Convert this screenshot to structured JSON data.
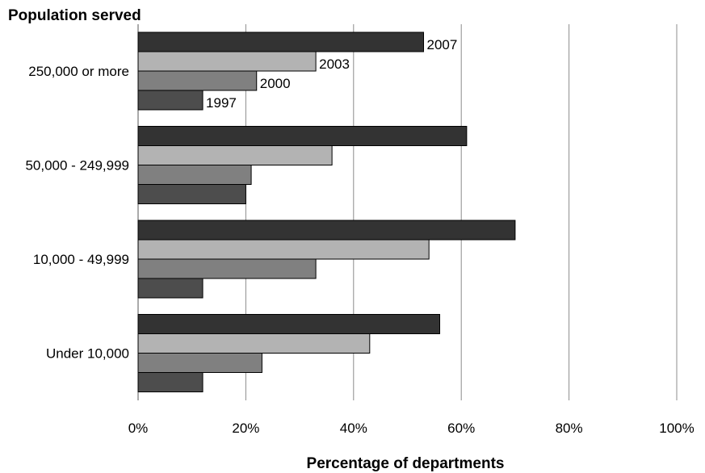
{
  "chart_data": {
    "type": "bar",
    "orientation": "horizontal",
    "title": "Population served",
    "xlabel": "Percentage of departments",
    "ylabel": "",
    "xlim": [
      0,
      100
    ],
    "x_ticks": [
      "0%",
      "20%",
      "40%",
      "60%",
      "80%",
      "100%"
    ],
    "x_tick_values": [
      0,
      20,
      40,
      60,
      80,
      100
    ],
    "grid": "vertical",
    "legend": "series labels on first category",
    "categories": [
      "250,000 or more",
      "50,000 - 249,999",
      "10,000 - 49,999",
      "Under 10,000"
    ],
    "series": [
      {
        "name": "2007",
        "color": "#333333",
        "values": [
          53,
          61,
          70,
          56
        ]
      },
      {
        "name": "2003",
        "color": "#b3b3b3",
        "values": [
          33,
          36,
          54,
          43
        ]
      },
      {
        "name": "2000",
        "color": "#808080",
        "values": [
          22,
          21,
          33,
          23
        ]
      },
      {
        "name": "1997",
        "color": "#4d4d4d",
        "values": [
          12,
          20,
          12,
          12
        ]
      }
    ]
  }
}
